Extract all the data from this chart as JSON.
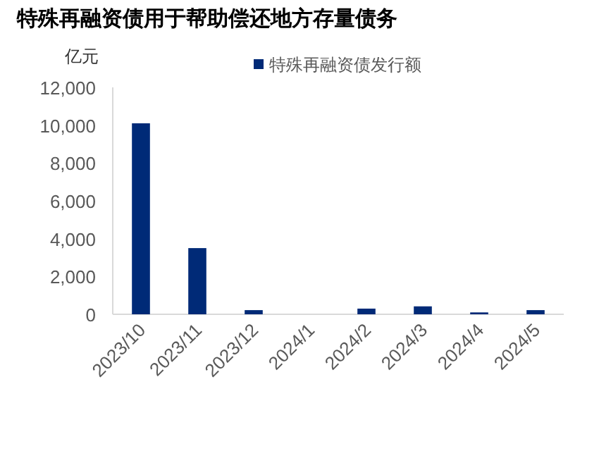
{
  "chart_data": {
    "type": "bar",
    "title": "特殊再融资债用于帮助偿还地方存量债务",
    "ylabel": "亿元",
    "categories": [
      "2023/10",
      "2023/11",
      "2023/12",
      "2024/1",
      "2024/2",
      "2024/3",
      "2024/4",
      "2024/5"
    ],
    "series": [
      {
        "name": "特殊再融资债发行额",
        "color": "#002a77",
        "values": [
          10100,
          3500,
          220,
          0,
          300,
          420,
          100,
          220
        ]
      }
    ],
    "ylim": [
      0,
      12000
    ],
    "yticks": [
      {
        "value": 0,
        "label": "0"
      },
      {
        "value": 2000,
        "label": "2,000"
      },
      {
        "value": 4000,
        "label": "4,000"
      },
      {
        "value": 6000,
        "label": "6,000"
      },
      {
        "value": 8000,
        "label": "8,000"
      },
      {
        "value": 10000,
        "label": "10,000"
      },
      {
        "value": 12000,
        "label": "12,000"
      }
    ],
    "grid": false,
    "legend": "top"
  }
}
